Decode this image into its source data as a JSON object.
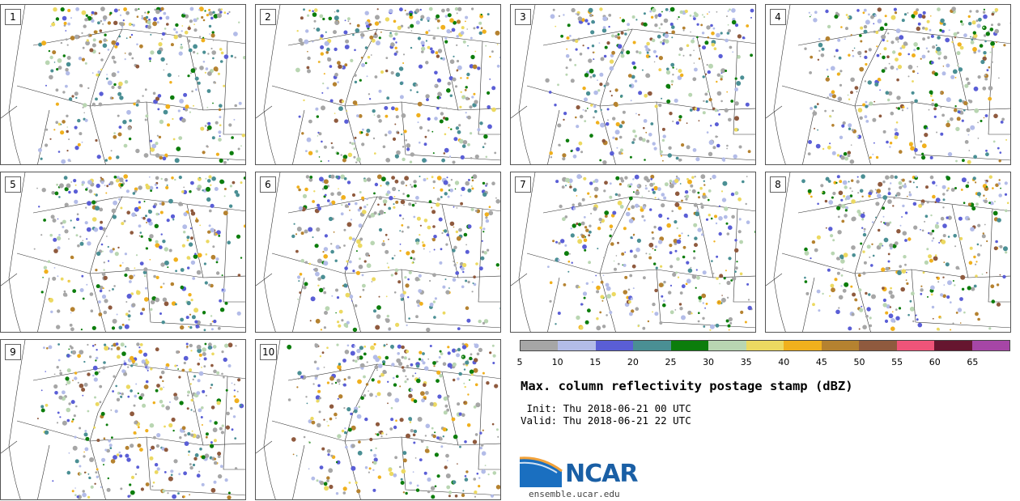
{
  "panels": [
    {
      "label": "1"
    },
    {
      "label": "2"
    },
    {
      "label": "3"
    },
    {
      "label": "4"
    },
    {
      "label": "5"
    },
    {
      "label": "6"
    },
    {
      "label": "7"
    },
    {
      "label": "8"
    },
    {
      "label": "9"
    },
    {
      "label": "10"
    }
  ],
  "colorbar": {
    "colors": [
      "#a6a6a6",
      "#b3bce8",
      "#5a5ed6",
      "#4a8f94",
      "#0c7d0c",
      "#b9d6b2",
      "#ecd961",
      "#f0b01d",
      "#b58230",
      "#8f5a3e",
      "#ef5479",
      "#66162f",
      "#a646a6"
    ],
    "ticks": [
      "5",
      "10",
      "15",
      "20",
      "25",
      "30",
      "35",
      "40",
      "45",
      "50",
      "55",
      "60",
      "65"
    ]
  },
  "title": "Max. column reflectivity postage stamp (dBZ)",
  "init": " Init: Thu 2018-06-21 00 UTC",
  "valid": "Valid: Thu 2018-06-21 22 UTC",
  "logo": {
    "text": "NCAR",
    "url": "ensemble.ucar.edu"
  }
}
